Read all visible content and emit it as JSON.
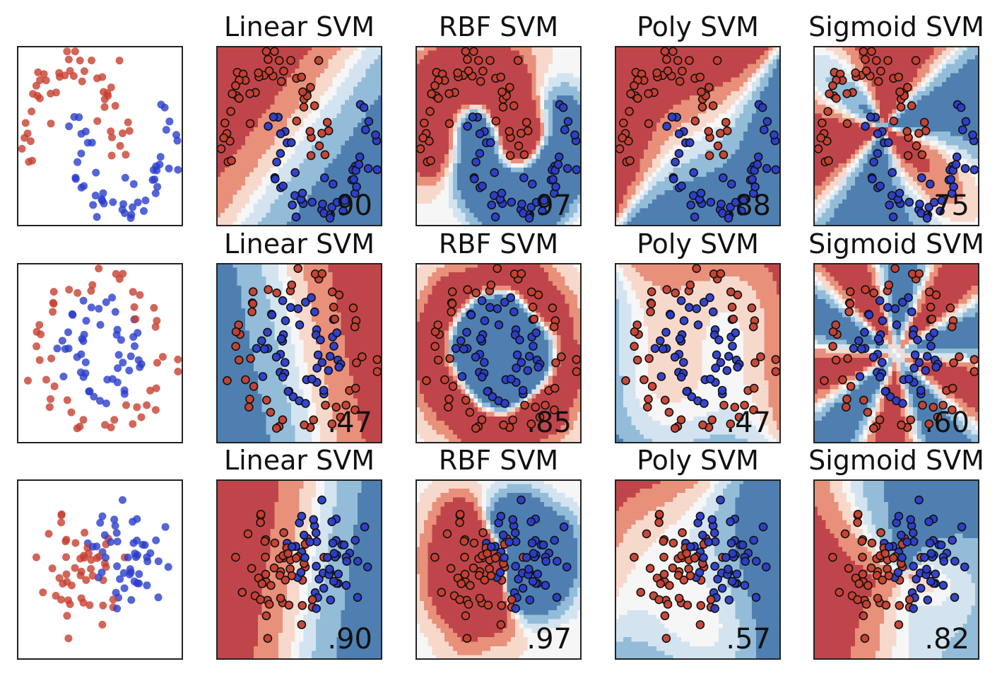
{
  "figure": {
    "rows": 3,
    "columns": [
      "input",
      "Linear SVM",
      "RBF SVM",
      "Poly SVM",
      "Sigmoid SVM"
    ]
  },
  "colors": {
    "class_red": "#c7402f",
    "class_blue": "#2b3dcc",
    "region_red_dark": "#c0454a",
    "region_red_mid": "#e8907a",
    "region_red_light": "#f7d9cc",
    "region_neutral": "#f6f6f6",
    "region_blue_light": "#d3e4f0",
    "region_blue_mid": "#93bcd8",
    "region_blue_dark": "#4f7fb0",
    "axes_frame": "#222222"
  },
  "chart_data": [
    {
      "type": "scatter",
      "row": 0,
      "col": 0,
      "title": "",
      "dataset": "moons",
      "score": ""
    },
    {
      "type": "scatter",
      "row": 0,
      "col": 1,
      "title": "Linear SVM",
      "kernel": "linear",
      "dataset": "moons",
      "score": ".90"
    },
    {
      "type": "scatter",
      "row": 0,
      "col": 2,
      "title": "RBF SVM",
      "kernel": "rbf",
      "dataset": "moons",
      "score": ".97"
    },
    {
      "type": "scatter",
      "row": 0,
      "col": 3,
      "title": "Poly SVM",
      "kernel": "poly",
      "dataset": "moons",
      "score": ".88"
    },
    {
      "type": "scatter",
      "row": 0,
      "col": 4,
      "title": "Sigmoid SVM",
      "kernel": "sigmoid",
      "dataset": "moons",
      "score": ".75"
    },
    {
      "type": "scatter",
      "row": 1,
      "col": 0,
      "title": "",
      "dataset": "circles",
      "score": ""
    },
    {
      "type": "scatter",
      "row": 1,
      "col": 1,
      "title": "Linear SVM",
      "kernel": "linear",
      "dataset": "circles",
      "score": ".47"
    },
    {
      "type": "scatter",
      "row": 1,
      "col": 2,
      "title": "RBF SVM",
      "kernel": "rbf",
      "dataset": "circles",
      "score": ".85"
    },
    {
      "type": "scatter",
      "row": 1,
      "col": 3,
      "title": "Poly SVM",
      "kernel": "poly",
      "dataset": "circles",
      "score": ".47"
    },
    {
      "type": "scatter",
      "row": 1,
      "col": 4,
      "title": "Sigmoid SVM",
      "kernel": "sigmoid",
      "dataset": "circles",
      "score": ".60"
    },
    {
      "type": "scatter",
      "row": 2,
      "col": 0,
      "title": "",
      "dataset": "linear",
      "score": ""
    },
    {
      "type": "scatter",
      "row": 2,
      "col": 1,
      "title": "Linear SVM",
      "kernel": "linear",
      "dataset": "linear",
      "score": ".90"
    },
    {
      "type": "scatter",
      "row": 2,
      "col": 2,
      "title": "RBF SVM",
      "kernel": "rbf",
      "dataset": "linear",
      "score": ".97"
    },
    {
      "type": "scatter",
      "row": 2,
      "col": 3,
      "title": "Poly SVM",
      "kernel": "poly",
      "dataset": "linear",
      "score": ".57"
    },
    {
      "type": "scatter",
      "row": 2,
      "col": 4,
      "title": "Sigmoid SVM",
      "kernel": "sigmoid",
      "dataset": "linear",
      "score": ".82"
    }
  ]
}
